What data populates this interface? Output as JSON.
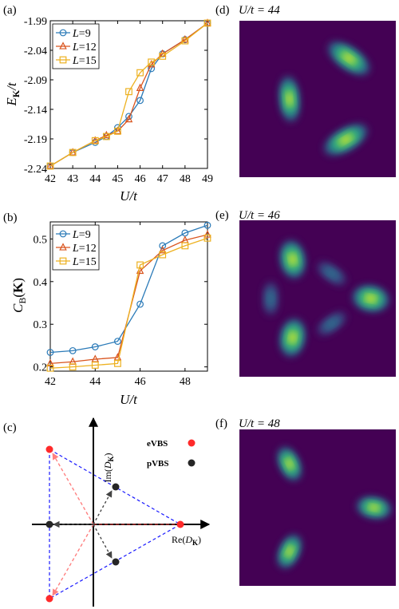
{
  "panel_labels": {
    "a": "(a)",
    "b": "(b)",
    "c": "(c)",
    "d": "(d)",
    "e": "(e)",
    "f": "(f)"
  },
  "colors": {
    "L9": "#2a7ab8",
    "L12": "#d9541e",
    "L15": "#edb120",
    "heatmap_bg": "#440154",
    "evbs": "#ff2a2a",
    "pvbs": "#262626",
    "triangle": "#1a1aff"
  },
  "chart_data": [
    {
      "id": "a",
      "type": "line",
      "xlabel": "U/t",
      "ylabel": "E_K/t",
      "xlim": [
        42,
        49
      ],
      "ylim": [
        -2.24,
        -1.99
      ],
      "x_ticks": [
        "42",
        "43",
        "44",
        "45",
        "46",
        "47",
        "48",
        "49"
      ],
      "y_ticks": [
        "-2.24",
        "-2.19",
        "-2.14",
        "-2.09",
        "-2.04",
        "-1.99"
      ],
      "legend_position": "top-left",
      "series": [
        {
          "name": "L=9",
          "marker": "circle",
          "color": "#2a7ab8",
          "x": [
            42,
            43,
            44,
            44.5,
            45,
            45.5,
            46,
            46.5,
            47,
            48,
            49
          ],
          "y": [
            -2.236,
            -2.213,
            -2.196,
            -2.186,
            -2.171,
            -2.152,
            -2.125,
            -2.071,
            -2.046,
            -2.022,
            -1.994
          ]
        },
        {
          "name": "L=12",
          "marker": "triangle",
          "color": "#d9541e",
          "x": [
            42,
            43,
            44,
            44.5,
            45,
            45.5,
            46,
            46.5,
            47,
            48,
            49
          ],
          "y": [
            -2.236,
            -2.213,
            -2.193,
            -2.184,
            -2.177,
            -2.157,
            -2.104,
            -2.064,
            -2.046,
            -2.022,
            -1.994
          ]
        },
        {
          "name": "L=15",
          "marker": "square",
          "color": "#edb120",
          "x": [
            42,
            43,
            44,
            44.5,
            45,
            45.5,
            46,
            46.5,
            47,
            48,
            49
          ],
          "y": [
            -2.236,
            -2.213,
            -2.193,
            -2.186,
            -2.177,
            -2.11,
            -2.078,
            -2.06,
            -2.05,
            -2.024,
            -1.994
          ]
        }
      ]
    },
    {
      "id": "b",
      "type": "line",
      "xlabel": "U/t",
      "ylabel": "C_B(K)",
      "xlim": [
        42,
        49
      ],
      "ylim": [
        0.19,
        0.54
      ],
      "x_ticks": [
        "42",
        "44",
        "46",
        "48"
      ],
      "x_tick_values": [
        42,
        44,
        46,
        48
      ],
      "y_ticks": [
        "0.2",
        "0.3",
        "0.4",
        "0.5"
      ],
      "y_tick_values": [
        0.2,
        0.3,
        0.4,
        0.5
      ],
      "legend_position": "top-left",
      "series": [
        {
          "name": "L=9",
          "marker": "circle",
          "color": "#2a7ab8",
          "x": [
            42,
            43,
            44,
            45,
            46,
            47,
            48,
            49
          ],
          "y": [
            0.234,
            0.238,
            0.247,
            0.26,
            0.347,
            0.484,
            0.514,
            0.532
          ]
        },
        {
          "name": "L=12",
          "marker": "triangle",
          "color": "#d9541e",
          "x": [
            42,
            43,
            44,
            45,
            46,
            47,
            48,
            49
          ],
          "y": [
            0.208,
            0.212,
            0.218,
            0.222,
            0.425,
            0.473,
            0.497,
            0.51
          ]
        },
        {
          "name": "L=15",
          "marker": "square",
          "color": "#edb120",
          "x": [
            42,
            43,
            44,
            45,
            46,
            47,
            48,
            49
          ],
          "y": [
            0.197,
            0.2,
            0.204,
            0.208,
            0.439,
            0.463,
            0.484,
            0.502
          ]
        }
      ]
    },
    {
      "id": "d",
      "type": "heatmap",
      "title": "U/t = 44",
      "peaks": [
        {
          "x": 0.7,
          "y": 0.24,
          "angle": 35,
          "rx": 0.095,
          "ry": 0.042,
          "intensity": 1.0
        },
        {
          "x": 0.32,
          "y": 0.5,
          "angle": 85,
          "rx": 0.09,
          "ry": 0.038,
          "intensity": 1.0
        },
        {
          "x": 0.68,
          "y": 0.76,
          "angle": -30,
          "rx": 0.095,
          "ry": 0.042,
          "intensity": 1.0
        }
      ]
    },
    {
      "id": "e",
      "type": "heatmap",
      "title": "U/t = 46",
      "peaks": [
        {
          "x": 0.34,
          "y": 0.25,
          "angle": 80,
          "rx": 0.075,
          "ry": 0.048,
          "intensity": 1.0
        },
        {
          "x": 0.84,
          "y": 0.5,
          "angle": 10,
          "rx": 0.072,
          "ry": 0.05,
          "intensity": 1.0
        },
        {
          "x": 0.34,
          "y": 0.75,
          "angle": -80,
          "rx": 0.075,
          "ry": 0.048,
          "intensity": 1.0
        },
        {
          "x": 0.59,
          "y": 0.34,
          "angle": 35,
          "rx": 0.08,
          "ry": 0.035,
          "intensity": 0.35
        },
        {
          "x": 0.2,
          "y": 0.5,
          "angle": 90,
          "rx": 0.08,
          "ry": 0.035,
          "intensity": 0.35
        },
        {
          "x": 0.59,
          "y": 0.66,
          "angle": -35,
          "rx": 0.08,
          "ry": 0.035,
          "intensity": 0.35
        }
      ]
    },
    {
      "id": "f",
      "type": "heatmap",
      "title": "U/t = 48",
      "peaks": [
        {
          "x": 0.32,
          "y": 0.22,
          "angle": 65,
          "rx": 0.07,
          "ry": 0.038,
          "intensity": 1.0
        },
        {
          "x": 0.86,
          "y": 0.5,
          "angle": 10,
          "rx": 0.068,
          "ry": 0.04,
          "intensity": 1.0
        },
        {
          "x": 0.32,
          "y": 0.78,
          "angle": -65,
          "rx": 0.07,
          "ry": 0.038,
          "intensity": 1.0
        }
      ]
    }
  ],
  "diagram_c": {
    "x_axis_label": "Re(D_K)",
    "y_axis_label": "Im(D_K)",
    "legend": [
      {
        "label": "eVBS",
        "color": "#ff2a2a"
      },
      {
        "label": "pVBS",
        "color": "#262626"
      }
    ]
  }
}
